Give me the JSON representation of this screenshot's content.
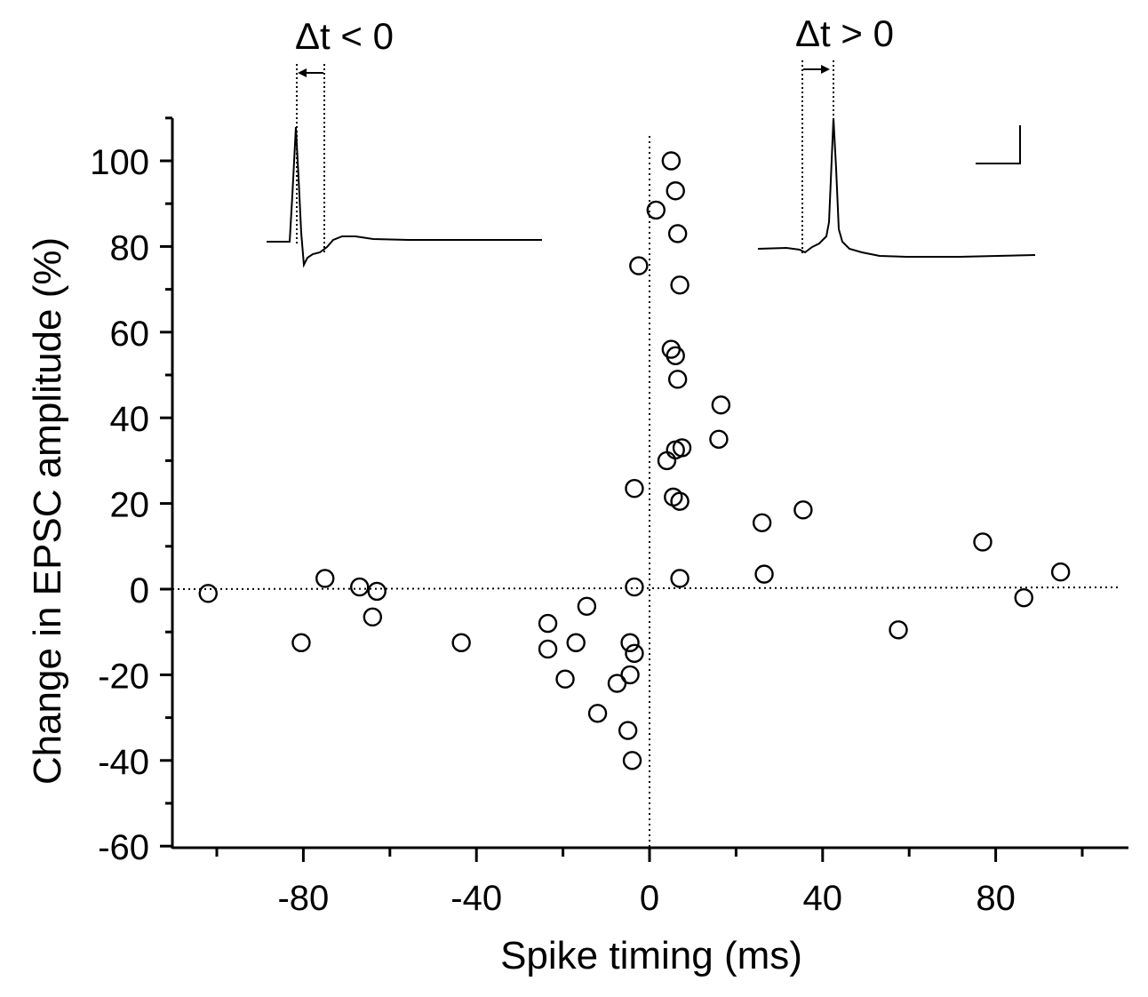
{
  "chart_data": {
    "type": "scatter",
    "xlabel": "Spike timing (ms)",
    "ylabel": "Change in EPSC amplitude (%)",
    "xlim": [
      -110,
      110
    ],
    "ylim": [
      -60,
      110
    ],
    "x_ticks": [
      -80,
      -40,
      0,
      40,
      80
    ],
    "y_ticks": [
      100,
      80,
      60,
      40,
      20,
      0,
      -20,
      -40,
      -60
    ],
    "grid": false,
    "reference_lines": {
      "x": 0,
      "y": 0,
      "style": "dotted"
    },
    "insets": [
      {
        "label": "Δt < 0",
        "description": "postsynaptic spike before EPSC"
      },
      {
        "label": "Δt > 0",
        "description": "EPSC before postsynaptic spike"
      }
    ],
    "points": [
      {
        "x": -102,
        "y": -1
      },
      {
        "x": -80.5,
        "y": -12.5
      },
      {
        "x": -75,
        "y": 2.5
      },
      {
        "x": -67,
        "y": 0.5
      },
      {
        "x": -63,
        "y": -0.5
      },
      {
        "x": -64,
        "y": -6.5
      },
      {
        "x": -43.5,
        "y": -12.5
      },
      {
        "x": -23.5,
        "y": -8
      },
      {
        "x": -23.5,
        "y": -14
      },
      {
        "x": -19.5,
        "y": -21
      },
      {
        "x": -17,
        "y": -12.5
      },
      {
        "x": -14.5,
        "y": -4
      },
      {
        "x": -12,
        "y": -29
      },
      {
        "x": -7.5,
        "y": -22
      },
      {
        "x": -5,
        "y": -33
      },
      {
        "x": -4.5,
        "y": -20
      },
      {
        "x": -4.5,
        "y": -12.5
      },
      {
        "x": -4,
        "y": -40
      },
      {
        "x": -3.5,
        "y": -15
      },
      {
        "x": -3.5,
        "y": 0.5
      },
      {
        "x": -3.5,
        "y": 23.5
      },
      {
        "x": -2.5,
        "y": 75.5
      },
      {
        "x": 1.5,
        "y": 88.5
      },
      {
        "x": 4,
        "y": 30
      },
      {
        "x": 5,
        "y": 100
      },
      {
        "x": 5,
        "y": 56
      },
      {
        "x": 5.5,
        "y": 21.5
      },
      {
        "x": 6,
        "y": 93
      },
      {
        "x": 6,
        "y": 54.5
      },
      {
        "x": 6,
        "y": 32.5
      },
      {
        "x": 6.5,
        "y": 83
      },
      {
        "x": 6.5,
        "y": 49
      },
      {
        "x": 7,
        "y": 71
      },
      {
        "x": 7,
        "y": 20.5
      },
      {
        "x": 7,
        "y": 2.5
      },
      {
        "x": 7.5,
        "y": 33
      },
      {
        "x": 16,
        "y": 35
      },
      {
        "x": 16.5,
        "y": 43
      },
      {
        "x": 26,
        "y": 15.5
      },
      {
        "x": 26.5,
        "y": 3.5
      },
      {
        "x": 35.5,
        "y": 18.5
      },
      {
        "x": 57.5,
        "y": -9.5
      },
      {
        "x": 77,
        "y": 11
      },
      {
        "x": 86.5,
        "y": -2
      },
      {
        "x": 95,
        "y": 4
      }
    ]
  }
}
